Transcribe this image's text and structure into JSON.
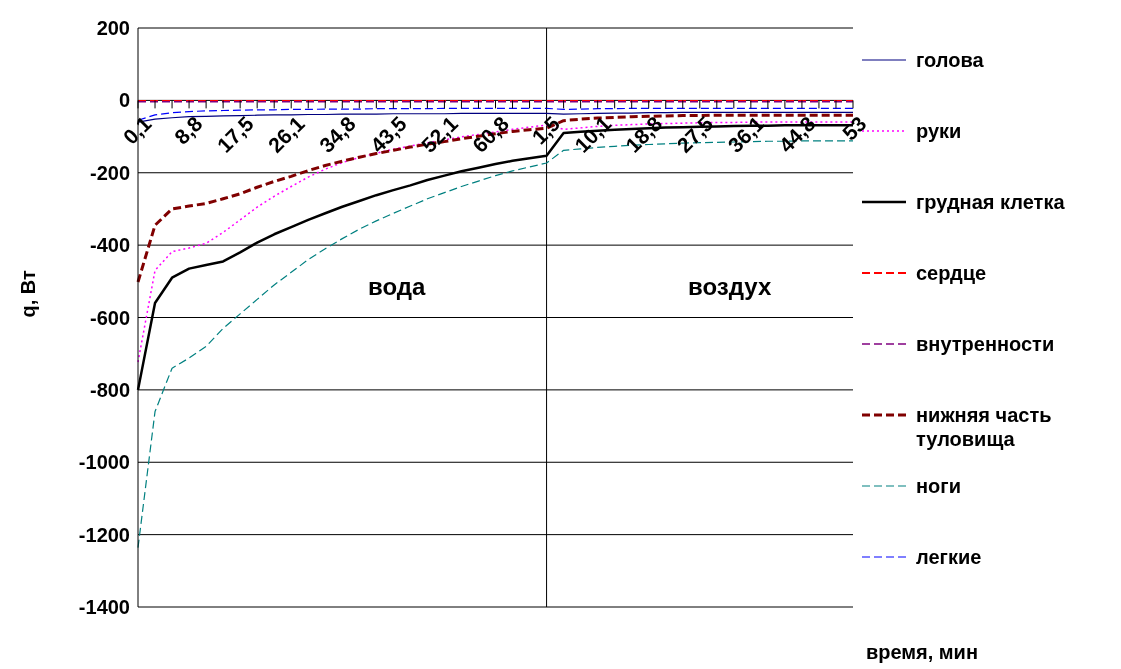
{
  "chart_data": {
    "type": "line",
    "xlabel": "время, мин",
    "ylabel": "q, Вт",
    "categories": [
      "0,1",
      null,
      null,
      "8,8",
      null,
      null,
      "17,5",
      null,
      null,
      "26,1",
      null,
      null,
      "34,8",
      null,
      null,
      "43,5",
      null,
      null,
      "52,1",
      null,
      null,
      "60,8",
      null,
      null,
      "1,5",
      null,
      null,
      "10,1",
      null,
      null,
      "18,8",
      null,
      null,
      "27,5",
      null,
      null,
      "36,1",
      null,
      null,
      "44,8",
      null,
      null,
      "53"
    ],
    "series": [
      {
        "name": "голова",
        "color": "#000080",
        "line_style": "solid",
        "values": [
          -60,
          -52,
          -48,
          -45,
          -44,
          -43,
          -42,
          -41,
          -40,
          -40,
          -39,
          -39,
          -38,
          -38,
          -38,
          -37,
          -37,
          -37,
          -37,
          -36,
          -36,
          -36,
          -36,
          -36,
          -36,
          -38,
          -37,
          -36,
          -35,
          -35,
          -34,
          -34,
          -33,
          -33,
          -33,
          -33,
          -33,
          -33,
          -33,
          -33,
          -33,
          -33,
          -33
        ]
      },
      {
        "name": "руки",
        "color": "#ff00ff",
        "line_style": "dotted",
        "values": [
          -723,
          -470,
          -418,
          -408,
          -395,
          -365,
          -330,
          -295,
          -265,
          -238,
          -212,
          -190,
          -172,
          -158,
          -146,
          -135,
          -126,
          -117,
          -109,
          -101,
          -94,
          -87,
          -80,
          -74,
          -68,
          -80,
          -76,
          -72,
          -69,
          -67,
          -65,
          -64,
          -63,
          -62,
          -61,
          -61,
          -60,
          -60,
          -60,
          -60,
          -60,
          -60,
          -60
        ]
      },
      {
        "name": "грудная клетка",
        "color": "#000000",
        "line_style": "solid",
        "values": [
          -800,
          -560,
          -490,
          -465,
          -455,
          -445,
          -420,
          -393,
          -370,
          -350,
          -330,
          -312,
          -294,
          -278,
          -262,
          -248,
          -235,
          -220,
          -208,
          -196,
          -186,
          -176,
          -167,
          -160,
          -153,
          -90,
          -87,
          -84,
          -81,
          -79,
          -77,
          -75,
          -74,
          -73,
          -72,
          -71,
          -70,
          -70,
          -69,
          -69,
          -69,
          -69,
          -69
        ]
      },
      {
        "name": "сердце",
        "color": "#ff0000",
        "line_style": "dashed",
        "values": [
          -2,
          -2,
          -2,
          -2,
          -2,
          -2,
          -2,
          -2,
          -2,
          -2,
          -2,
          -2,
          -2,
          -2,
          -2,
          -2,
          -2,
          -2,
          -2,
          -2,
          -2,
          -2,
          -2,
          -2,
          -2,
          -2,
          -2,
          -2,
          -2,
          -2,
          -2,
          -2,
          -2,
          -2,
          -2,
          -2,
          -2,
          -2,
          -2,
          -2,
          -2,
          -2,
          -2
        ]
      },
      {
        "name": "внутренности",
        "color": "#800080",
        "line_style": "dashed",
        "values": [
          -4,
          -4,
          -4,
          -4,
          -4,
          -4,
          -4,
          -4,
          -4,
          -4,
          -4,
          -4,
          -4,
          -4,
          -4,
          -4,
          -4,
          -4,
          -4,
          -4,
          -4,
          -4,
          -4,
          -4,
          -4,
          -4,
          -4,
          -4,
          -4,
          -4,
          -4,
          -4,
          -4,
          -4,
          -4,
          -4,
          -4,
          -4,
          -4,
          -4,
          -4,
          -4,
          -4
        ]
      },
      {
        "name": "нижняя часть туловища",
        "color": "#800000",
        "line_style": "dashed",
        "values": [
          -502,
          -345,
          -300,
          -292,
          -285,
          -272,
          -258,
          -240,
          -224,
          -210,
          -194,
          -180,
          -168,
          -157,
          -147,
          -138,
          -129,
          -121,
          -114,
          -106,
          -99,
          -92,
          -86,
          -81,
          -77,
          -56,
          -52,
          -49,
          -47,
          -45,
          -44,
          -43,
          -42,
          -42,
          -41,
          -41,
          -41,
          -41,
          -41,
          -41,
          -41,
          -41,
          -41
        ]
      },
      {
        "name": "ноги",
        "color": "#008080",
        "line_style": "dashed",
        "values": [
          -1236,
          -860,
          -740,
          -712,
          -680,
          -630,
          -590,
          -550,
          -510,
          -475,
          -440,
          -410,
          -382,
          -356,
          -333,
          -312,
          -292,
          -272,
          -255,
          -238,
          -223,
          -208,
          -195,
          -184,
          -173,
          -138,
          -134,
          -130,
          -127,
          -124,
          -122,
          -120,
          -118,
          -117,
          -116,
          -115,
          -114,
          -113,
          -113,
          -112,
          -112,
          -112,
          -112
        ]
      },
      {
        "name": "легкие",
        "color": "#0000ff",
        "line_style": "dashed",
        "values": [
          -55,
          -40,
          -34,
          -31,
          -29,
          -28,
          -27,
          -26,
          -26,
          -25,
          -25,
          -24,
          -24,
          -24,
          -23,
          -23,
          -23,
          -23,
          -22,
          -22,
          -22,
          -22,
          -22,
          -22,
          -22,
          -25,
          -24,
          -23,
          -23,
          -22,
          -22,
          -22,
          -22,
          -22,
          -22,
          -22,
          -22,
          -22,
          -22,
          -22,
          -22,
          -22,
          -22
        ]
      }
    ],
    "ylim": [
      -1400,
      200
    ],
    "yticks": [
      -1400,
      -1200,
      -1000,
      -800,
      -600,
      -400,
      -200,
      0,
      200
    ],
    "grid": "y",
    "legend": "right",
    "marker": "none",
    "ref_lines": [
      {
        "axis": "x",
        "value": "1,5",
        "color": "#000000"
      }
    ],
    "annotations": [
      "вода",
      "воздух"
    ]
  }
}
